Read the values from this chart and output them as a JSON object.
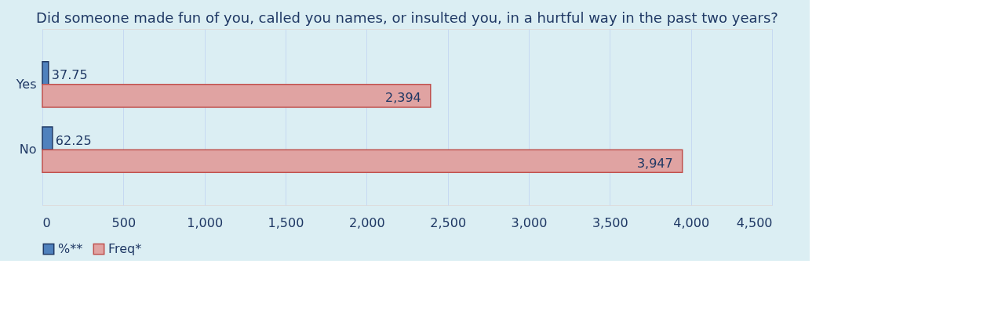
{
  "chart_data": {
    "type": "bar",
    "orientation": "horizontal",
    "title": "Did someone made fun of you, called you names, or insulted you, in a hurtful way in the past two years?",
    "categories": [
      "Yes",
      "No"
    ],
    "series": [
      {
        "name": "%**",
        "color": "#4f81bd",
        "values": [
          37.75,
          62.25
        ],
        "value_labels": [
          "37.75",
          "62.25"
        ]
      },
      {
        "name": "Freq*",
        "color": "#e0a3a2",
        "values": [
          2394,
          3947
        ],
        "value_labels": [
          "2,394",
          "3,947"
        ]
      }
    ],
    "xlim": [
      0,
      4500
    ],
    "xticks": [
      0,
      {
        "value": 500,
        "label": "500"
      },
      {
        "value": 1000,
        "label": "1,000"
      },
      {
        "value": 1500,
        "label": "1,500"
      },
      {
        "value": 2000,
        "label": "2,000"
      },
      {
        "value": 2500,
        "label": "2,500"
      },
      {
        "value": 3000,
        "label": "3,000"
      },
      {
        "value": 3500,
        "label": "3,500"
      },
      {
        "value": 4000,
        "label": "4,000"
      },
      {
        "value": 4500,
        "label": "4,500"
      }
    ],
    "grid": "x",
    "legend": "bottom"
  }
}
